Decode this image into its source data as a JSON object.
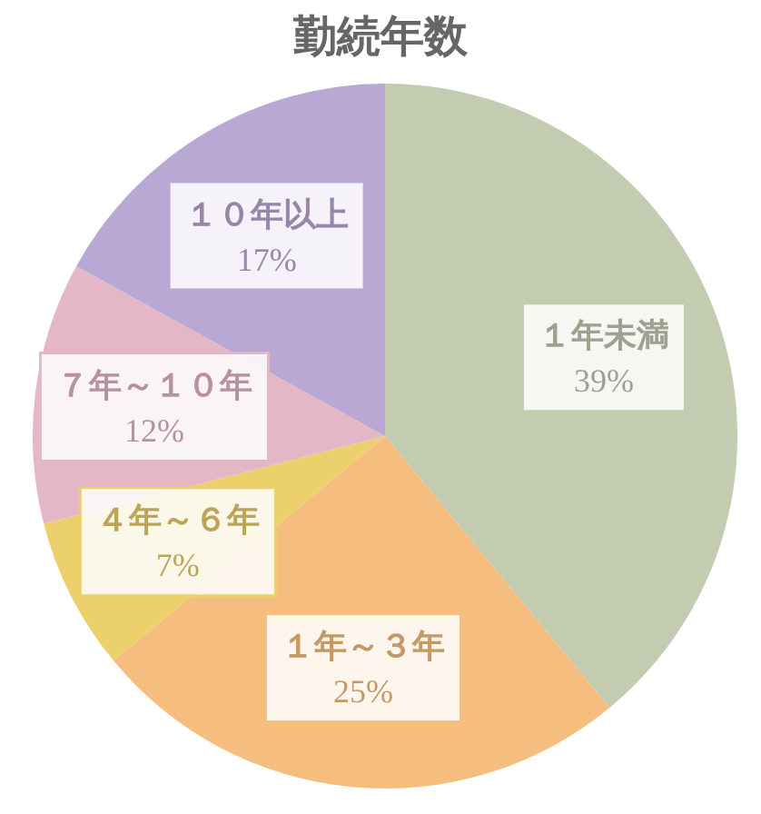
{
  "chart_data": {
    "type": "pie",
    "title": "勤続年数",
    "categories": [
      "１年未満",
      "１年～３年",
      "４年～６年",
      "７年～１０年",
      "１０年以上"
    ],
    "values": [
      39,
      25,
      7,
      12,
      17
    ],
    "value_labels": [
      "39%",
      "25%",
      "7%",
      "12%",
      "17%"
    ],
    "colors": [
      "#c3cbb1",
      "#f6be7e",
      "#ebd06c",
      "#e4b7c6",
      "#baa8d4"
    ],
    "legend": false
  }
}
